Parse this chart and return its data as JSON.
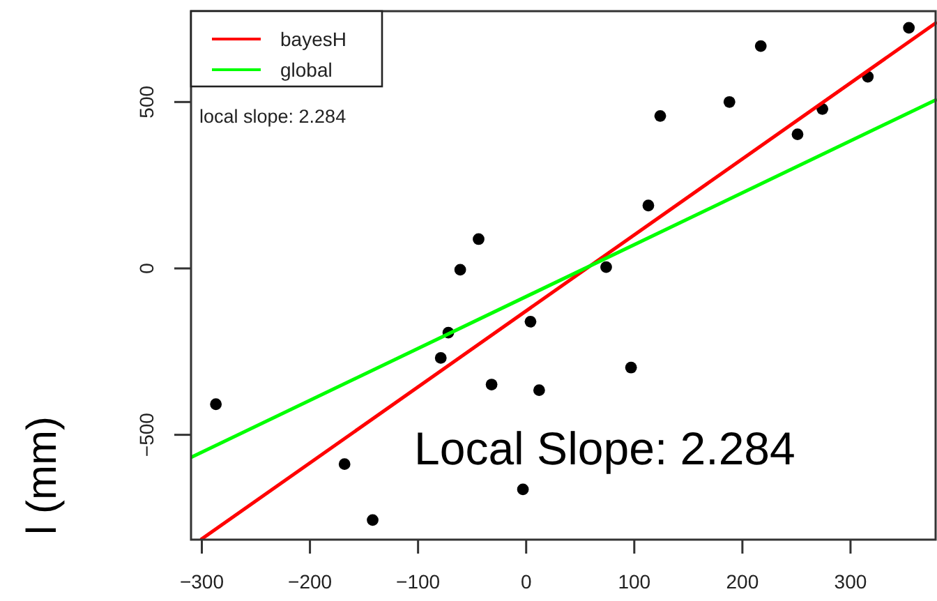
{
  "chart_data": {
    "type": "scatter",
    "ylabel": "l (mm)",
    "xlim": [
      -310,
      380
    ],
    "ylim": [
      -815,
      773
    ],
    "xticks": [
      -300,
      -200,
      -100,
      0,
      100,
      200,
      300
    ],
    "yticks": [
      -500,
      0,
      500
    ],
    "grid": false,
    "legend": "top left",
    "annotations": [
      "local slope: 2.284",
      "Local Slope: 2.284"
    ],
    "series": [
      {
        "marker": "circle",
        "color": "#000000",
        "x": [
          -287,
          -168,
          -142,
          -79,
          -72,
          -61,
          -44,
          -32,
          4,
          12,
          -3,
          74,
          97,
          113,
          124,
          188,
          217,
          251,
          274,
          316,
          354
        ],
        "values": [
          -408,
          -588,
          -756,
          -269,
          -193,
          -4,
          88,
          -349,
          -160,
          -366,
          -664,
          4,
          -298,
          189,
          458,
          500,
          668,
          403,
          479,
          576,
          723
        ]
      },
      {
        "type": "line",
        "marker": "none",
        "name": "bayesH",
        "color": "#ff0000",
        "x": [
          -301,
          380
        ],
        "values": [
          -815,
          740
        ]
      },
      {
        "type": "line",
        "marker": "none",
        "name": "global",
        "color": "#00ff00",
        "x": [
          -310,
          380
        ],
        "values": [
          -568,
          508
        ]
      }
    ]
  }
}
